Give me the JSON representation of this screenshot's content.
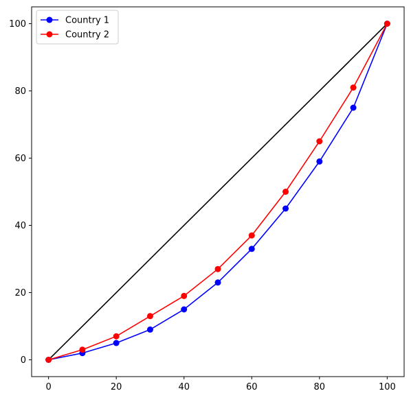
{
  "chart_data": {
    "type": "line",
    "title": "",
    "xlabel": "",
    "ylabel": "",
    "xlim": [
      -5,
      105
    ],
    "ylim": [
      -5,
      105
    ],
    "xticks": [
      0,
      20,
      40,
      60,
      80,
      100
    ],
    "yticks": [
      0,
      20,
      40,
      60,
      80,
      100
    ],
    "xtick_labels": [
      "0",
      "20",
      "40",
      "60",
      "80",
      "100"
    ],
    "ytick_labels": [
      "0",
      "20",
      "40",
      "60",
      "80",
      "100"
    ],
    "grid": false,
    "legend_position": "top-left",
    "x": [
      0,
      10,
      20,
      30,
      40,
      50,
      60,
      70,
      80,
      90,
      100
    ],
    "series": [
      {
        "name": "Country 1",
        "color": "#0000ff",
        "marker": "circle",
        "values": [
          0,
          2,
          5,
          9,
          15,
          23,
          33,
          45,
          59,
          75,
          100
        ]
      },
      {
        "name": "Country 2",
        "color": "#ff0000",
        "marker": "circle",
        "values": [
          0,
          3,
          7,
          13,
          19,
          27,
          37,
          50,
          65,
          81,
          100
        ]
      }
    ],
    "reference_line": {
      "color": "#000000",
      "x": [
        0,
        100
      ],
      "y": [
        0,
        100
      ]
    }
  }
}
